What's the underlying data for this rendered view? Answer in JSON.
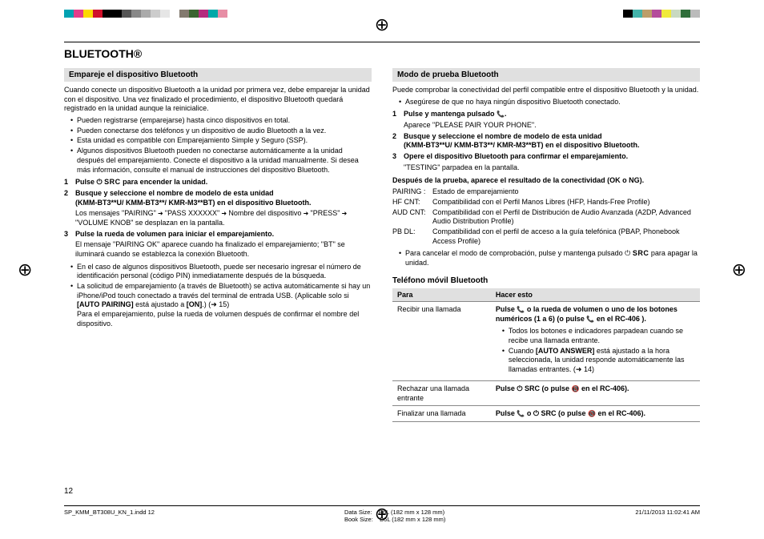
{
  "registration_marks": {
    "glyph": "⊕"
  },
  "color_bar_left": [
    "#00a2b2",
    "#e53c8a",
    "#fcd900",
    "#d0102a",
    "#000000",
    "#000000",
    "#555555",
    "#888888",
    "#aaaaaa",
    "#cccccc",
    "#e6e6e6",
    "#ffffff",
    "#837a6f",
    "#3a6430",
    "#b42c7e",
    "#00a8a8",
    "#e78ea5"
  ],
  "color_bar_right": [
    "#000000",
    "#43b3aa",
    "#bc9e6a",
    "#b44c9b",
    "#f0ea3c",
    "#c9d9c1",
    "#2f6e3a",
    "#bbbbbb"
  ],
  "title": "BLUETOOTH®",
  "left": {
    "h1": "Empareje el dispositivo Bluetooth",
    "p1": "Cuando conecte un dispositivo Bluetooth a la unidad por primera vez, debe emparejar la unidad con el dispositivo. Una vez finalizado el procedimiento, el dispositivo Bluetooth quedará registrado en la unidad aunque la reinicialice.",
    "b1": "Pueden registrarse (emparejarse) hasta cinco dispositivos en total.",
    "b2": "Pueden conectarse dos teléfonos y un dispositivo de audio Bluetooth a la vez.",
    "b3": "Esta unidad es compatible con Emparejamiento Simple y Seguro (SSP).",
    "b4": "Algunos dispositivos Bluetooth pueden no conectarse automáticamente a la unidad después del emparejamiento. Conecte el dispositivo a la unidad manualmente. Si desea más información, consulte el manual de instrucciones del dispositivo Bluetooth.",
    "s1_pre": "Pulse ",
    "s1_post": " para encender la unidad.",
    "s2a": "Busque y seleccione el nombre de modelo de esta unidad",
    "s2b": "(KMM-BT3**U/ KMM-BT3**/ KMR-M3**BT) en el dispositivo Bluetooth.",
    "s2sub_a": "Los mensajes \"PAIRING\"",
    "s2sub_b": "\"PASS XXXXXX\"",
    "s2sub_c": "Nombre del dispositivo",
    "s2sub_d": "\"PRESS\"",
    "s2sub_e": "\"VOLUME KNOB\" se desplazan en la pantalla.",
    "s3a": "Pulse la rueda de volumen para iniciar el emparejamiento.",
    "s3sub": "El mensaje \"PAIRING OK\" aparece cuando ha finalizado el emparejamiento; \"BT\" se iluminará cuando se establezca la conexión Bluetooth.",
    "b5": "En el caso de algunos dispositivos Bluetooth, puede ser necesario ingresar el número de identificación personal (código PIN) inmediatamente después de la búsqueda.",
    "b6a": "La solicitud de emparejamiento (a través de Bluetooth) se activa automáticamente si hay un iPhone/iPod touch conectado a través del terminal de entrada USB. (Aplicable solo si ",
    "b6b": "[AUTO PAIRING]",
    "b6c": " está ajustado a ",
    "b6d": "[ON]",
    "b6e": ".) (➜ 15)",
    "b6sub": "Para el emparejamiento, pulse la rueda de volumen después de confirmar el nombre del dispositivo."
  },
  "right": {
    "h1": "Modo de prueba Bluetooth",
    "p1": "Puede comprobar la conectividad del perfil compatible entre el dispositivo Bluetooth y la unidad.",
    "b1": "Asegúrese de que no haya ningún dispositivo Bluetooth conectado.",
    "s1a": "Pulse y mantenga pulsado ",
    "s1sub": "Aparece \"PLEASE PAIR YOUR PHONE\".",
    "s2a": "Busque y seleccione el nombre de modelo de esta unidad",
    "s2b": "(KMM-BT3**U/ KMM-BT3**/ KMR-M3**BT) en el dispositivo Bluetooth.",
    "s3a": "Opere el dispositivo Bluetooth para confirmar el emparejamiento.",
    "s3sub": "\"TESTING\" parpadea en la pantalla.",
    "after": "Después de la prueba, aparece el resultado de la conectividad (OK o NG).",
    "d1k": "PAIRING :",
    "d1v": "Estado de emparejamiento",
    "d2k": "HF CNT:",
    "d2v": "Compatibilidad con el Perfil Manos Libres (HFP, Hands-Free Profile)",
    "d3k": "AUD CNT:",
    "d3v": "Compatibilidad con el Perfil de Distribución de Audio Avanzada (A2DP, Advanced Audio Distribution Profile)",
    "d4k": "PB DL:",
    "d4v": "Compatibilidad con el perfil de acceso a la guía telefónica (PBAP, Phonebook Access Profile)",
    "b2a": "Para cancelar el modo de comprobación, pulse y mantenga pulsado ",
    "b2b": " para apagar la unidad.",
    "h2": "Teléfono móvil Bluetooth",
    "table": {
      "th1": "Para",
      "th2": "Hacer esto",
      "r1a": "Recibir una llamada",
      "r1b_pre": "Pulse ",
      "r1b_mid": " o la rueda de volumen o uno de los botones numéricos (1 a 6) (o pulse ",
      "r1b_post": " en el RC-406 ).",
      "r1_li1": "Todos los botones e indicadores parpadean cuando se recibe una llamada entrante.",
      "r1_li2a": "Cuando ",
      "r1_li2b": "[AUTO ANSWER]",
      "r1_li2c": " está ajustado a la hora seleccionada, la unidad responde automáticamente las llamadas entrantes. (➜ 14)",
      "r2a": "Rechazar una llamada entrante",
      "r2b_pre": "Pulse ",
      "r2b_mid": " (o pulse ",
      "r2b_post": " en el RC-406).",
      "r3a": "Finalizar una llamada",
      "r3b_pre": "Pulse ",
      "r3b_mid1": " o ",
      "r3b_mid2": " (o pulse ",
      "r3b_post": " en el RC-406)."
    }
  },
  "page_number": "12",
  "footer": {
    "file": "SP_KMM_BT308U_KN_1.indd   12",
    "datasize_label": "Data Size:",
    "datasize": "B6L (182 mm x 128 mm)",
    "booksize_label": "Book Size:",
    "booksize": "B6L (182 mm x 128 mm)",
    "timestamp": "21/11/2013   11:02:41 AM"
  },
  "src_label": "SRC"
}
